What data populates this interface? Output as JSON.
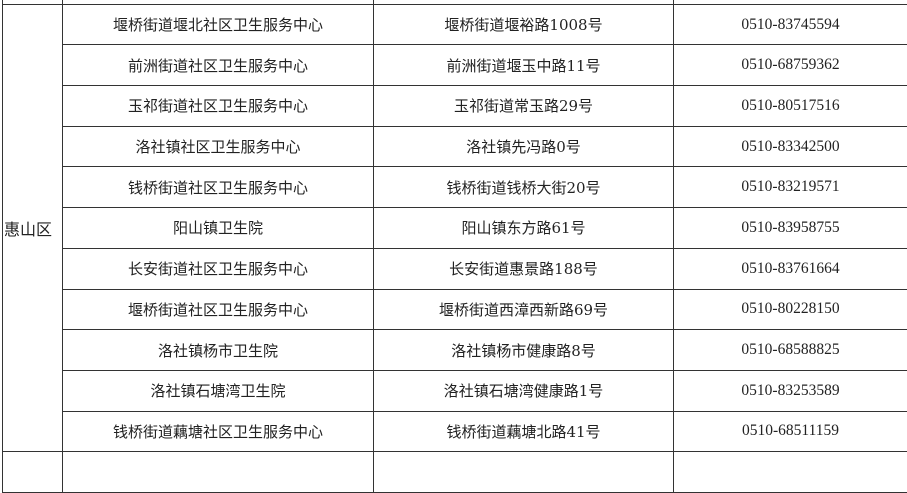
{
  "district": "惠山区",
  "rows": [
    {
      "name": "堰桥街道堰北社区卫生服务中心",
      "address": "堰桥街道堰裕路1008号",
      "phone": "0510-83745594"
    },
    {
      "name": "前洲街道社区卫生服务中心",
      "address": "前洲街道堰玉中路11号",
      "phone": "0510-68759362"
    },
    {
      "name": "玉祁街道社区卫生服务中心",
      "address": "玉祁街道常玉路29号",
      "phone": "0510-80517516"
    },
    {
      "name": "洛社镇社区卫生服务中心",
      "address": "洛社镇先冯路0号",
      "phone": "0510-83342500"
    },
    {
      "name": "钱桥街道社区卫生服务中心",
      "address": "钱桥街道钱桥大街20号",
      "phone": "0510-83219571"
    },
    {
      "name": "阳山镇卫生院",
      "address": "阳山镇东方路61号",
      "phone": "0510-83958755"
    },
    {
      "name": "长安街道社区卫生服务中心",
      "address": "长安街道惠景路188号",
      "phone": "0510-83761664"
    },
    {
      "name": "堰桥街道社区卫生服务中心",
      "address": "堰桥街道西漳西新路69号",
      "phone": "0510-80228150"
    },
    {
      "name": "洛社镇杨市卫生院",
      "address": "洛社镇杨市健康路8号",
      "phone": "0510-68588825"
    },
    {
      "name": "洛社镇石塘湾卫生院",
      "address": "洛社镇石塘湾健康路1号",
      "phone": "0510-83253589"
    },
    {
      "name": "钱桥街道藕塘社区卫生服务中心",
      "address": "钱桥街道藕塘北路41号",
      "phone": "0510-68511159"
    }
  ]
}
